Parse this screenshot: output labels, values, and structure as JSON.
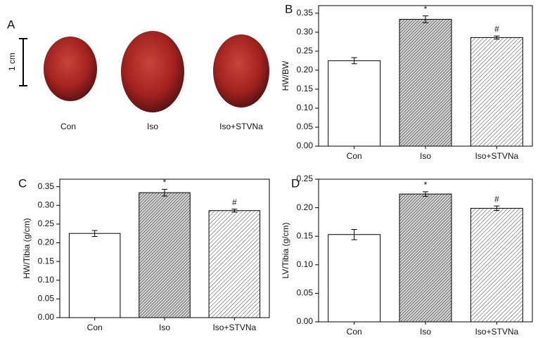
{
  "photo_panel": {
    "panel_label": "A",
    "scale_label": "1 cm",
    "labels": [
      "Con",
      "Iso",
      "Iso+STVNa"
    ]
  },
  "chart_data": [
    {
      "type": "bar",
      "panel_label": "B",
      "y_label": "HW/BW",
      "categories": [
        "Con",
        "Iso",
        "Iso+STVNa"
      ],
      "values": [
        0.225,
        0.334,
        0.286
      ],
      "errors": [
        0.008,
        0.009,
        0.004
      ],
      "annotations": [
        null,
        "*",
        "#"
      ],
      "fills": [
        "white",
        "hatch-dense",
        "hatch"
      ],
      "ylim": [
        0,
        0.37
      ],
      "yticks": [
        {
          "value": 0,
          "label": "0.00"
        },
        {
          "value": 0.05,
          "label": "0.05"
        },
        {
          "value": 0.1,
          "label": "0.10"
        },
        {
          "value": 0.15,
          "label": "0.15"
        },
        {
          "value": 0.2,
          "label": "0.20"
        },
        {
          "value": 0.25,
          "label": "0.25"
        },
        {
          "value": 0.3,
          "label": "0.30"
        },
        {
          "value": 0.35,
          "label": "0.35"
        }
      ]
    },
    {
      "type": "bar",
      "panel_label": "C",
      "y_label": "HW/Tibia (g/cm)",
      "categories": [
        "Con",
        "Iso",
        "Iso+STVNa"
      ],
      "values": [
        0.225,
        0.334,
        0.286
      ],
      "errors": [
        0.008,
        0.009,
        0.004
      ],
      "annotations": [
        null,
        "*",
        "#"
      ],
      "fills": [
        "white",
        "hatch-dense",
        "hatch"
      ],
      "ylim": [
        0,
        0.37
      ],
      "yticks": [
        {
          "value": 0,
          "label": "0.00"
        },
        {
          "value": 0.05,
          "label": "0.05"
        },
        {
          "value": 0.1,
          "label": "0.10"
        },
        {
          "value": 0.15,
          "label": "0.15"
        },
        {
          "value": 0.2,
          "label": "0.20"
        },
        {
          "value": 0.25,
          "label": "0.25"
        },
        {
          "value": 0.3,
          "label": "0.30"
        },
        {
          "value": 0.35,
          "label": "0.35"
        }
      ]
    },
    {
      "type": "bar",
      "panel_label": "D",
      "y_label": "LV/Tibia (g/cm)",
      "categories": [
        "Con",
        "Iso",
        "Iso+STVNa"
      ],
      "values": [
        0.153,
        0.224,
        0.199
      ],
      "errors": [
        0.009,
        0.004,
        0.004
      ],
      "annotations": [
        null,
        "*",
        "#"
      ],
      "fills": [
        "white",
        "hatch-dense",
        "hatch"
      ],
      "ylim": [
        0,
        0.25
      ],
      "yticks": [
        {
          "value": 0,
          "label": "0.00"
        },
        {
          "value": 0.05,
          "label": "0.05"
        },
        {
          "value": 0.1,
          "label": "0.10"
        },
        {
          "value": 0.15,
          "label": "0.15"
        },
        {
          "value": 0.2,
          "label": "0.20"
        },
        {
          "value": 0.25,
          "label": "0.25"
        }
      ]
    }
  ]
}
